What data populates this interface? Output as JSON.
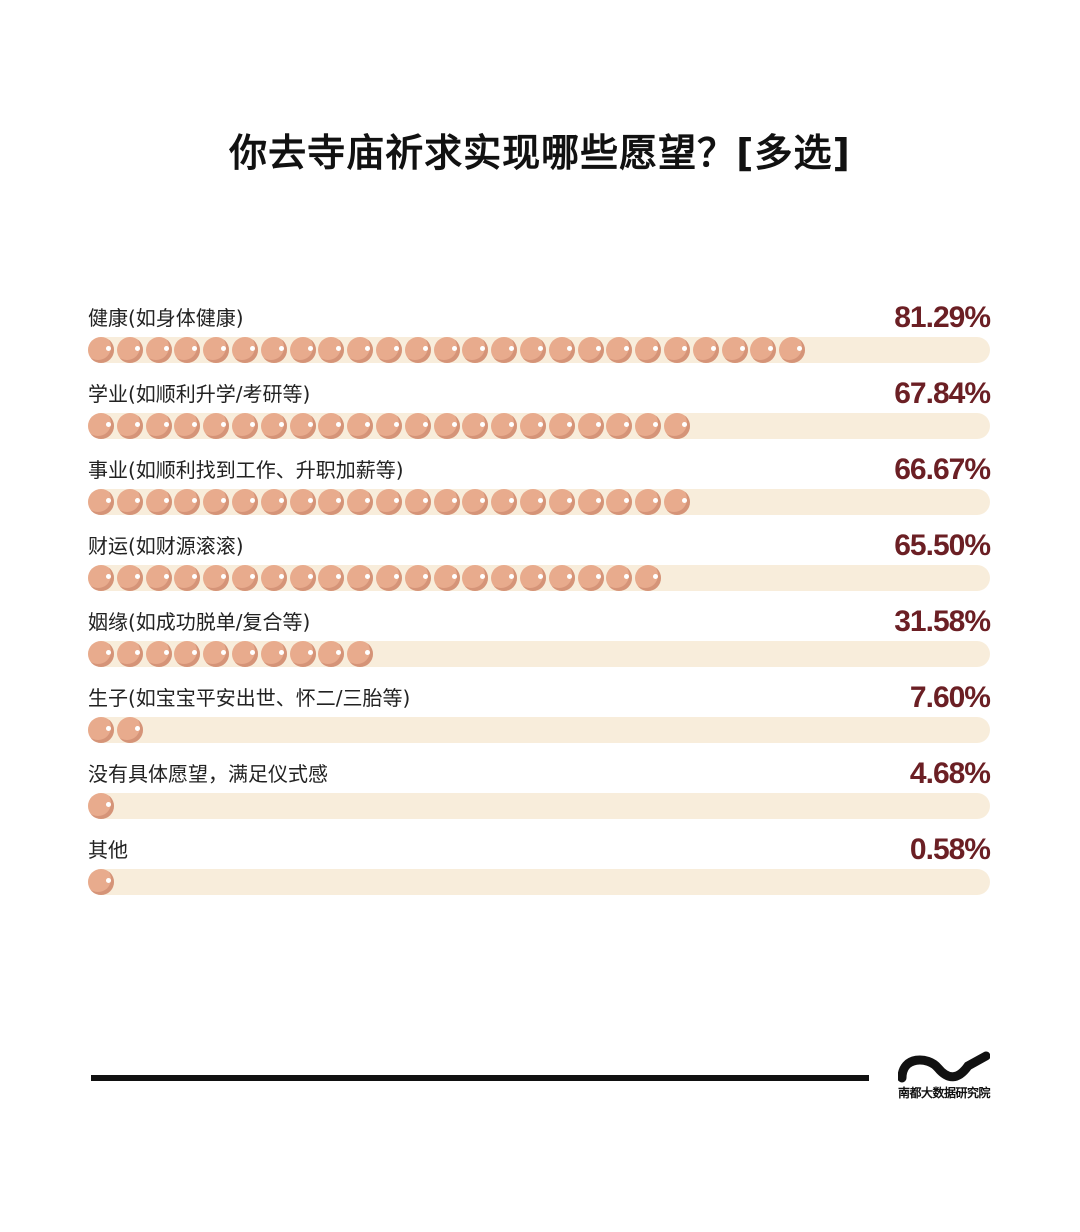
{
  "title": "你去寺庙祈求实现哪些愿望？[多选]",
  "chart_data": {
    "type": "bar",
    "title": "你去寺庙祈求实现哪些愿望？[多选]",
    "categories": [
      "健康(如身体健康)",
      "学业(如顺利升学/考研等)",
      "事业(如顺利找到工作、升职加薪等)",
      "财运(如财源滚滚)",
      "姻缘(如成功脱单/复合等)",
      "生子(如宝宝平安出世、怀二/三胎等)",
      "没有具体愿望，满足仪式感",
      "其他"
    ],
    "values": [
      81.29,
      67.84,
      66.67,
      65.5,
      31.58,
      7.6,
      4.68,
      0.58
    ],
    "value_labels": [
      "81.29%",
      "67.84%",
      "66.67%",
      "65.50%",
      "31.58%",
      "7.60%",
      "4.68%",
      "0.58%"
    ],
    "xlim": [
      0,
      100
    ],
    "xlabel": "",
    "ylabel": "",
    "colors": {
      "dot": "#e8ab8d",
      "track": "#f8eddb",
      "percent_text": "#6b1f24"
    }
  },
  "footer": {
    "brand": "南都大数据研究院"
  }
}
